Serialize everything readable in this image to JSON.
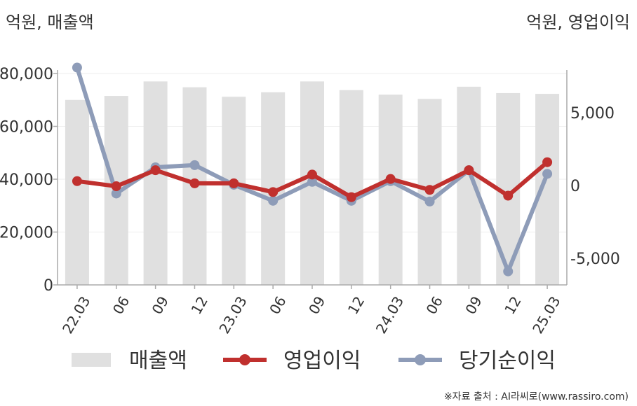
{
  "units": {
    "left": "억원, 매출액",
    "right": "억원, 영업이익"
  },
  "source": "※자료 출처 : AI라씨로(www.rassiro.com)",
  "colors": {
    "revenue": "#e0e0e0",
    "operating_profit": "#c0302e",
    "net_income": "#8e9cb8",
    "axis": "#aaaaaa",
    "grid": "#eeeeee"
  },
  "chart_data": {
    "type": "bar",
    "categories": [
      "22.03",
      "06",
      "09",
      "12",
      "23.03",
      "06",
      "09",
      "12",
      "24.03",
      "06",
      "09",
      "12",
      "25.03"
    ],
    "series": [
      {
        "name": "매출액",
        "type": "bar",
        "axis": "left",
        "values": [
          70000,
          71500,
          77000,
          74800,
          71200,
          72900,
          77000,
          73700,
          72000,
          70400,
          75000,
          72600,
          72300
        ]
      },
      {
        "name": "영업이익",
        "type": "line",
        "axis": "right",
        "values": [
          300,
          -50,
          1050,
          150,
          150,
          -450,
          750,
          -800,
          450,
          -300,
          1050,
          -700,
          1600
        ]
      },
      {
        "name": "당기순이익",
        "type": "line",
        "axis": "right",
        "values": [
          8100,
          -550,
          1250,
          1400,
          50,
          -1050,
          250,
          -1050,
          300,
          -1100,
          1050,
          -5900,
          800
        ]
      }
    ],
    "ylim_left": [
      0,
      80000
    ],
    "left_ticks": [
      "0",
      "20,000",
      "40,000",
      "60,000",
      "80,000"
    ],
    "left_tick_values": [
      0,
      20000,
      40000,
      60000,
      80000
    ],
    "ylim_right": [
      -5000,
      5000
    ],
    "right_ticks": [
      "-5,000",
      "0",
      "5,000"
    ],
    "right_tick_values": [
      -5000,
      0,
      5000
    ],
    "grid": true,
    "legend_position": "bottom"
  }
}
